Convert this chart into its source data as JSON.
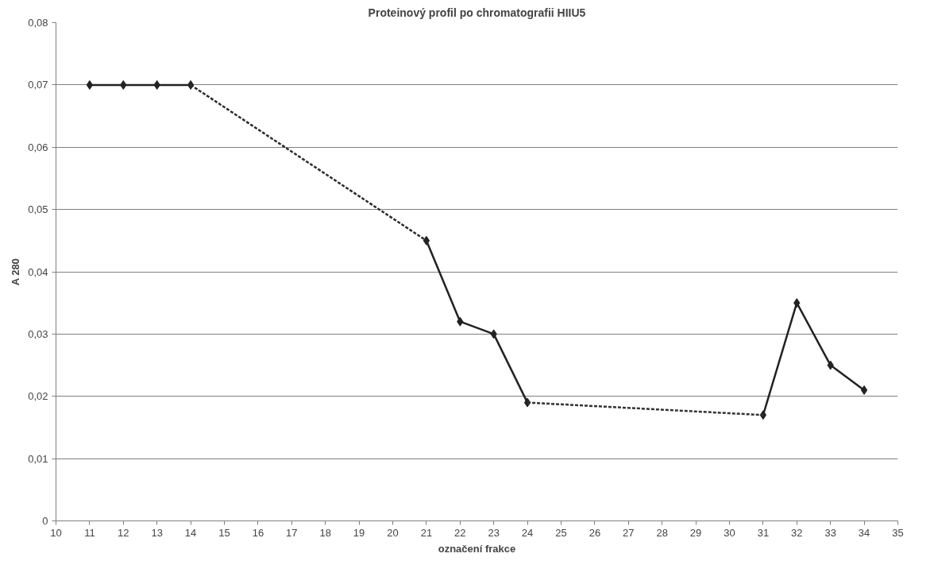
{
  "chart_data": {
    "type": "line",
    "title": "Proteinový profil po chromatografii HIIU5",
    "xlabel": "označení frakce",
    "ylabel": "A 280",
    "series": [
      {
        "color": "#222222",
        "marker": "diamond",
        "line_style": "solid",
        "x": [
          11,
          12,
          13,
          14,
          15,
          21,
          22,
          23,
          24,
          25,
          31,
          32,
          33,
          34
        ],
        "values": [
          0.07,
          0.07,
          0.07,
          0.07,
          null,
          0.045,
          0.032,
          0.03,
          0.019,
          null,
          0.017,
          0.035,
          0.025,
          0.021
        ]
      },
      {
        "color": "#2b2b2b",
        "marker": "none",
        "line_style": "dotted",
        "x": [
          14,
          21
        ],
        "values": [
          0.07,
          0.045
        ]
      },
      {
        "color": "#333333",
        "marker": "none",
        "line_style": "dotted",
        "x": [
          24,
          31
        ],
        "values": [
          0.019,
          0.017
        ]
      }
    ],
    "xlim": [
      10,
      35
    ],
    "xticks": [
      10,
      11,
      12,
      13,
      14,
      15,
      16,
      17,
      18,
      19,
      20,
      21,
      22,
      23,
      24,
      25,
      26,
      27,
      28,
      29,
      30,
      31,
      32,
      33,
      34,
      35
    ],
    "ylim": [
      0,
      0.08
    ],
    "yticks": [
      0,
      {
        "value": 0.01,
        "label": "0,01"
      },
      {
        "value": 0.02,
        "label": "0,02"
      },
      {
        "value": 0.03,
        "label": "0,03"
      },
      {
        "value": 0.04,
        "label": "0,04"
      },
      {
        "value": 0.05,
        "label": "0,05"
      },
      {
        "value": 0.06,
        "label": "0,06"
      },
      {
        "value": 0.07,
        "label": "0,07"
      },
      {
        "value": 0.08,
        "label": "0,08"
      }
    ],
    "grid": "y"
  }
}
